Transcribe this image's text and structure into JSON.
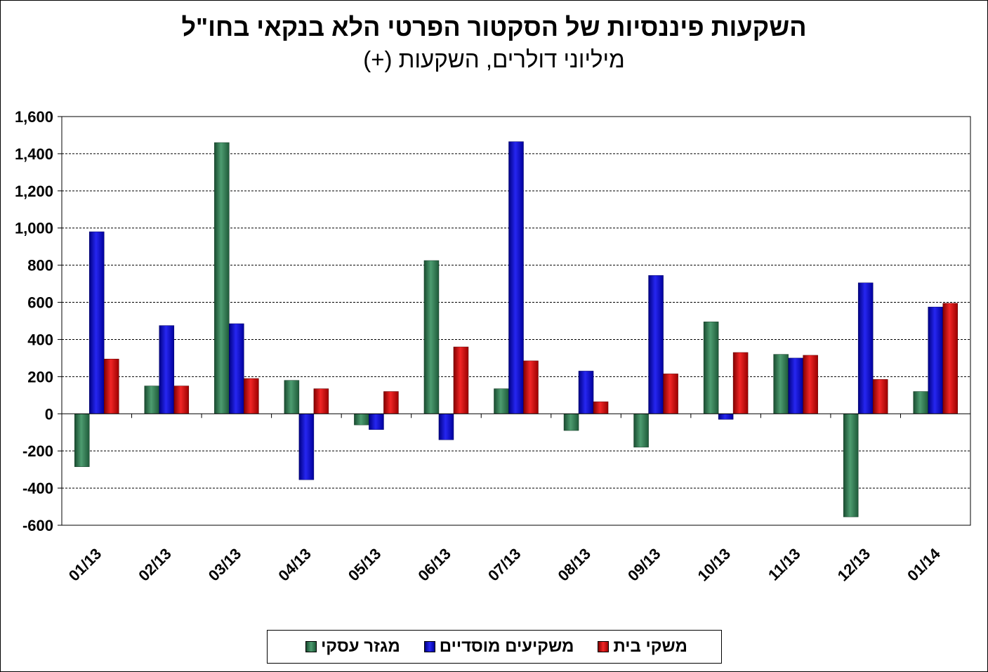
{
  "chart_data": {
    "type": "bar",
    "title": "השקעות פיננסיות של הסקטור הפרטי הלא בנקאי בחו\"ל",
    "subtitle": "מיליוני דולרים, השקעות (+)",
    "categories": [
      "01/13",
      "02/13",
      "03/13",
      "04/13",
      "05/13",
      "06/13",
      "07/13",
      "08/13",
      "09/13",
      "10/13",
      "11/13",
      "12/13",
      "01/14"
    ],
    "series": [
      {
        "name": "מגזר עסקי",
        "color": "#2e8b57",
        "values": [
          -285,
          150,
          1460,
          180,
          -60,
          825,
          135,
          -90,
          -180,
          495,
          320,
          -555,
          120
        ]
      },
      {
        "name": "משקיעים מוסדיים",
        "color": "#0000ee",
        "values": [
          980,
          475,
          485,
          -355,
          -85,
          -140,
          1465,
          230,
          745,
          -30,
          300,
          705,
          575
        ]
      },
      {
        "name": "משקי בית",
        "color": "#ee0000",
        "values": [
          295,
          150,
          190,
          135,
          120,
          360,
          285,
          65,
          215,
          330,
          315,
          185,
          595
        ]
      }
    ],
    "ylim": [
      -600,
      1600
    ],
    "yticks": [
      -600,
      -400,
      -200,
      0,
      200,
      400,
      600,
      800,
      1000,
      1200,
      1400,
      1600
    ],
    "grid": true,
    "legend_position": "bottom"
  }
}
